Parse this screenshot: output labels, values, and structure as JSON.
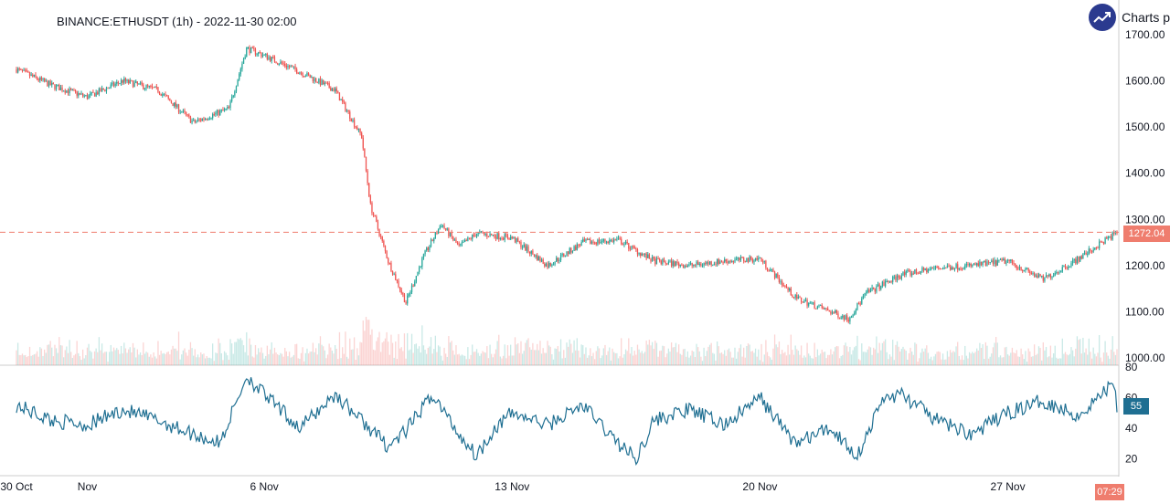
{
  "header": {
    "title": "BINANCE:ETHUSDT (1h) - 2022-11-30 02:00",
    "brand_label": "Charts p",
    "brand_icon": "trend-chart-icon"
  },
  "colors": {
    "up": "#26a69a",
    "down": "#ef5350",
    "rsi_line": "#1f6f92",
    "price_line": "#ef7d6e",
    "axis_text": "#131722",
    "grid_border": "#cccccc"
  },
  "badges": {
    "last_price": "1272.04",
    "rsi_value": "55",
    "time_label": "07:29"
  },
  "chart_data": [
    {
      "type": "candlestick",
      "title": "BINANCE:ETHUSDT (1h) - 2022-11-30 02:00",
      "x_range": [
        "2022-10-30T00:00",
        "2022-11-30T02:00"
      ],
      "ylim": [
        1000,
        1700
      ],
      "y_ticks": [
        "1000.00",
        "1100.00",
        "1200.00",
        "1300.00",
        "1400.00",
        "1500.00",
        "1600.00",
        "1700.00"
      ],
      "x_ticks": [
        {
          "label": "30 Oct",
          "date": "2022-10-30"
        },
        {
          "label": "Nov",
          "date": "2022-11-01"
        },
        {
          "label": "6 Nov",
          "date": "2022-11-06"
        },
        {
          "label": "13 Nov",
          "date": "2022-11-13"
        },
        {
          "label": "20 Nov",
          "date": "2022-11-20"
        },
        {
          "label": "27 Nov",
          "date": "2022-11-27"
        }
      ],
      "last_price": 1272.04,
      "close_anchors": [
        {
          "date": "2022-10-30T00:00",
          "close": 1625
        },
        {
          "date": "2022-10-31T00:00",
          "close": 1590
        },
        {
          "date": "2022-11-01T00:00",
          "close": 1565
        },
        {
          "date": "2022-11-02T00:00",
          "close": 1600
        },
        {
          "date": "2022-11-03T00:00",
          "close": 1580
        },
        {
          "date": "2022-11-04T00:00",
          "close": 1510
        },
        {
          "date": "2022-11-05T00:00",
          "close": 1540
        },
        {
          "date": "2022-11-05T12:00",
          "close": 1670
        },
        {
          "date": "2022-11-06T00:00",
          "close": 1655
        },
        {
          "date": "2022-11-07T00:00",
          "close": 1620
        },
        {
          "date": "2022-11-08T00:00",
          "close": 1580
        },
        {
          "date": "2022-11-08T18:00",
          "close": 1480
        },
        {
          "date": "2022-11-09T00:00",
          "close": 1330
        },
        {
          "date": "2022-11-09T12:00",
          "close": 1210
        },
        {
          "date": "2022-11-10T00:00",
          "close": 1120
        },
        {
          "date": "2022-11-10T12:00",
          "close": 1220
        },
        {
          "date": "2022-11-11T00:00",
          "close": 1290
        },
        {
          "date": "2022-11-11T12:00",
          "close": 1240
        },
        {
          "date": "2022-11-12T00:00",
          "close": 1270
        },
        {
          "date": "2022-11-13T00:00",
          "close": 1260
        },
        {
          "date": "2022-11-14T00:00",
          "close": 1200
        },
        {
          "date": "2022-11-15T00:00",
          "close": 1250
        },
        {
          "date": "2022-11-16T00:00",
          "close": 1255
        },
        {
          "date": "2022-11-17T00:00",
          "close": 1210
        },
        {
          "date": "2022-11-18T00:00",
          "close": 1200
        },
        {
          "date": "2022-11-19T00:00",
          "close": 1210
        },
        {
          "date": "2022-11-20T00:00",
          "close": 1215
        },
        {
          "date": "2022-11-21T00:00",
          "close": 1130
        },
        {
          "date": "2022-11-22T00:00",
          "close": 1100
        },
        {
          "date": "2022-11-22T12:00",
          "close": 1085
        },
        {
          "date": "2022-11-23T00:00",
          "close": 1140
        },
        {
          "date": "2022-11-24T00:00",
          "close": 1180
        },
        {
          "date": "2022-11-25T00:00",
          "close": 1195
        },
        {
          "date": "2022-11-26T00:00",
          "close": 1200
        },
        {
          "date": "2022-11-27T00:00",
          "close": 1210
        },
        {
          "date": "2022-11-28T00:00",
          "close": 1170
        },
        {
          "date": "2022-11-29T00:00",
          "close": 1215
        },
        {
          "date": "2022-11-30T02:00",
          "close": 1272
        }
      ]
    },
    {
      "type": "line",
      "ylim": [
        10,
        80
      ],
      "y_ticks": [
        "20",
        "40",
        "60",
        "80"
      ],
      "current_value": 55,
      "rsi_anchors": [
        {
          "date": "2022-10-30T00:00",
          "value": 55
        },
        {
          "date": "2022-10-31T00:00",
          "value": 45
        },
        {
          "date": "2022-11-01T00:00",
          "value": 42
        },
        {
          "date": "2022-11-02T00:00",
          "value": 52
        },
        {
          "date": "2022-11-03T00:00",
          "value": 45
        },
        {
          "date": "2022-11-04T00:00",
          "value": 36
        },
        {
          "date": "2022-11-04T18:00",
          "value": 30
        },
        {
          "date": "2022-11-05T12:00",
          "value": 74
        },
        {
          "date": "2022-11-06T00:00",
          "value": 62
        },
        {
          "date": "2022-11-07T00:00",
          "value": 40
        },
        {
          "date": "2022-11-08T00:00",
          "value": 62
        },
        {
          "date": "2022-11-08T18:00",
          "value": 45
        },
        {
          "date": "2022-11-09T12:00",
          "value": 28
        },
        {
          "date": "2022-11-10T00:00",
          "value": 38
        },
        {
          "date": "2022-11-10T18:00",
          "value": 62
        },
        {
          "date": "2022-11-11T12:00",
          "value": 36
        },
        {
          "date": "2022-11-12T00:00",
          "value": 22
        },
        {
          "date": "2022-11-12T12:00",
          "value": 40
        },
        {
          "date": "2022-11-13T00:00",
          "value": 50
        },
        {
          "date": "2022-11-14T00:00",
          "value": 42
        },
        {
          "date": "2022-11-15T00:00",
          "value": 55
        },
        {
          "date": "2022-11-16T00:00",
          "value": 30
        },
        {
          "date": "2022-11-16T12:00",
          "value": 20
        },
        {
          "date": "2022-11-17T00:00",
          "value": 45
        },
        {
          "date": "2022-11-18T00:00",
          "value": 52
        },
        {
          "date": "2022-11-19T00:00",
          "value": 42
        },
        {
          "date": "2022-11-20T00:00",
          "value": 60
        },
        {
          "date": "2022-11-21T00:00",
          "value": 30
        },
        {
          "date": "2022-11-22T00:00",
          "value": 40
        },
        {
          "date": "2022-11-22T18:00",
          "value": 22
        },
        {
          "date": "2022-11-23T12:00",
          "value": 60
        },
        {
          "date": "2022-11-24T00:00",
          "value": 62
        },
        {
          "date": "2022-11-25T00:00",
          "value": 45
        },
        {
          "date": "2022-11-26T00:00",
          "value": 36
        },
        {
          "date": "2022-11-27T00:00",
          "value": 50
        },
        {
          "date": "2022-11-28T00:00",
          "value": 58
        },
        {
          "date": "2022-11-29T00:00",
          "value": 48
        },
        {
          "date": "2022-11-30T00:00",
          "value": 70
        },
        {
          "date": "2022-11-30T02:00",
          "value": 55
        }
      ]
    }
  ]
}
